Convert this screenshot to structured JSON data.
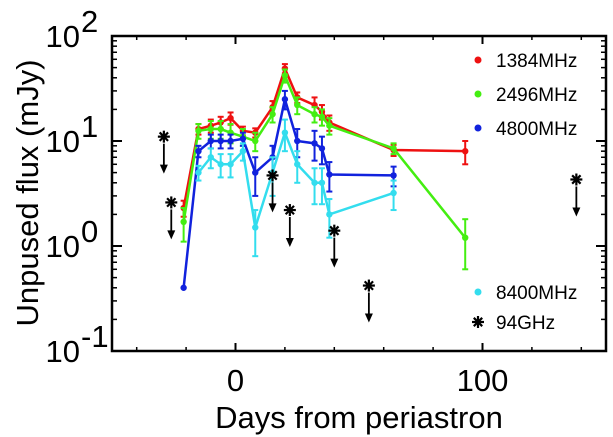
{
  "chart_data": {
    "type": "scatter",
    "xlabel": "Days from periastron",
    "ylabel": "Unpused flux (mJy)",
    "xlim": [
      -50,
      150
    ],
    "ylim": [
      0.1,
      100
    ],
    "y_scale": "log",
    "x_ticks": [
      {
        "value": 0,
        "label": "0"
      },
      {
        "value": 100,
        "label": "100"
      }
    ],
    "y_ticks": [
      {
        "value": 0.1,
        "base": "10",
        "exp": "-1"
      },
      {
        "value": 1,
        "base": "10",
        "exp": "0"
      },
      {
        "value": 10,
        "base": "10",
        "exp": "1"
      },
      {
        "value": 100,
        "base": "10",
        "exp": "2"
      }
    ],
    "legend_position": "right",
    "series": [
      {
        "name": "1384MHz",
        "color": "#ee1111",
        "connected": true,
        "x": [
          -21,
          -15,
          -10,
          -6,
          -2,
          3,
          8,
          15,
          20,
          25,
          32,
          35,
          38,
          64,
          93
        ],
        "y": [
          2.3,
          13.0,
          14.0,
          15.0,
          16.5,
          12.5,
          12.0,
          21.0,
          49.0,
          26.0,
          22.0,
          19.0,
          15.0,
          8.2,
          8.0
        ],
        "err": [
          0.4,
          1.5,
          2.0,
          2.0,
          2.2,
          1.2,
          1.2,
          3.0,
          5.0,
          3.0,
          4.0,
          3.0,
          2.5,
          1.0,
          2.0
        ]
      },
      {
        "name": "2496MHz",
        "color": "#44ee11",
        "connected": true,
        "x": [
          -21,
          -15,
          -10,
          -6,
          -2,
          3,
          8,
          15,
          20,
          25,
          32,
          35,
          38,
          64,
          93
        ],
        "y": [
          1.7,
          12.5,
          13.0,
          13.0,
          12.0,
          11.0,
          10.0,
          18.0,
          42.0,
          22.0,
          18.0,
          17.0,
          14.0,
          8.5,
          1.2
        ],
        "err": [
          0.6,
          2.0,
          2.5,
          2.5,
          2.5,
          2.0,
          2.0,
          3.0,
          6.0,
          4.0,
          3.0,
          3.0,
          2.5,
          1.0,
          0.6
        ]
      },
      {
        "name": "4800MHz",
        "color": "#1122dd",
        "connected": true,
        "x": [
          -21,
          -15,
          -10,
          -6,
          -2,
          3,
          8,
          15,
          20,
          25,
          32,
          35,
          38,
          64
        ],
        "y": [
          0.4,
          8.0,
          10.0,
          10.0,
          10.0,
          10.5,
          5.0,
          7.0,
          25.0,
          10.0,
          9.5,
          8.5,
          4.8,
          4.7
        ],
        "err": [
          0.0,
          1.0,
          1.5,
          1.5,
          1.5,
          1.5,
          2.0,
          2.0,
          5.0,
          3.0,
          3.0,
          2.5,
          1.5,
          1.0
        ]
      },
      {
        "name": "8400MHz",
        "color": "#33ddee",
        "connected": true,
        "x": [
          -15,
          -10,
          -6,
          -2,
          3,
          8,
          15,
          20,
          25,
          32,
          35,
          38,
          64
        ],
        "y": [
          5.0,
          7.0,
          6.0,
          6.0,
          8.0,
          1.5,
          5.0,
          12.0,
          6.0,
          4.0,
          4.0,
          2.0,
          3.2
        ],
        "err": [
          0.8,
          1.5,
          1.5,
          1.5,
          1.5,
          0.7,
          2.0,
          4.0,
          2.0,
          1.5,
          1.5,
          0.8,
          1.0
        ]
      },
      {
        "name": "94GHz",
        "color": "#000000",
        "connected": false,
        "upper_limits": true,
        "x": [
          -29,
          -26,
          15,
          22,
          40,
          54,
          138
        ],
        "y": [
          11.0,
          2.6,
          4.7,
          2.2,
          1.4,
          0.42,
          4.3
        ]
      }
    ],
    "legend_entries_top": [
      "1384MHz",
      "2496MHz",
      "4800MHz"
    ],
    "legend_entries_bottom": [
      "8400MHz",
      "94GHz"
    ]
  }
}
